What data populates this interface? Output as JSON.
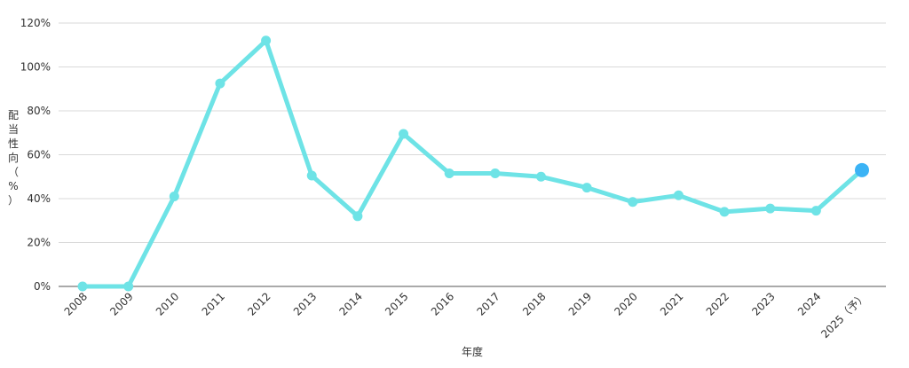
{
  "chart_data": {
    "type": "line",
    "title": "",
    "xlabel": "年度",
    "ylabel": "配当性向（%）",
    "categories": [
      "2008",
      "2009",
      "2010",
      "2011",
      "2012",
      "2013",
      "2014",
      "2015",
      "2016",
      "2017",
      "2018",
      "2019",
      "2020",
      "2021",
      "2022",
      "2023",
      "2024",
      "2025（予）"
    ],
    "series": [
      {
        "values": [
          0,
          0,
          41,
          92.5,
          112,
          50.5,
          32,
          69.5,
          51.5,
          51.5,
          50,
          45,
          38.5,
          41.5,
          34,
          35.5,
          34.5,
          53
        ]
      }
    ],
    "ylim": [
      0,
      120
    ],
    "yticks": [
      0,
      20,
      40,
      60,
      80,
      100,
      120
    ],
    "ytick_suffix": "%",
    "grid": true,
    "legend": "none",
    "colors": {
      "line": "#6ee3e6",
      "point": "#6ee3e6",
      "highlight_point": "#3bb3f5",
      "grid": "#d9d9d9",
      "axis": "#555555",
      "text": "#333333"
    }
  }
}
